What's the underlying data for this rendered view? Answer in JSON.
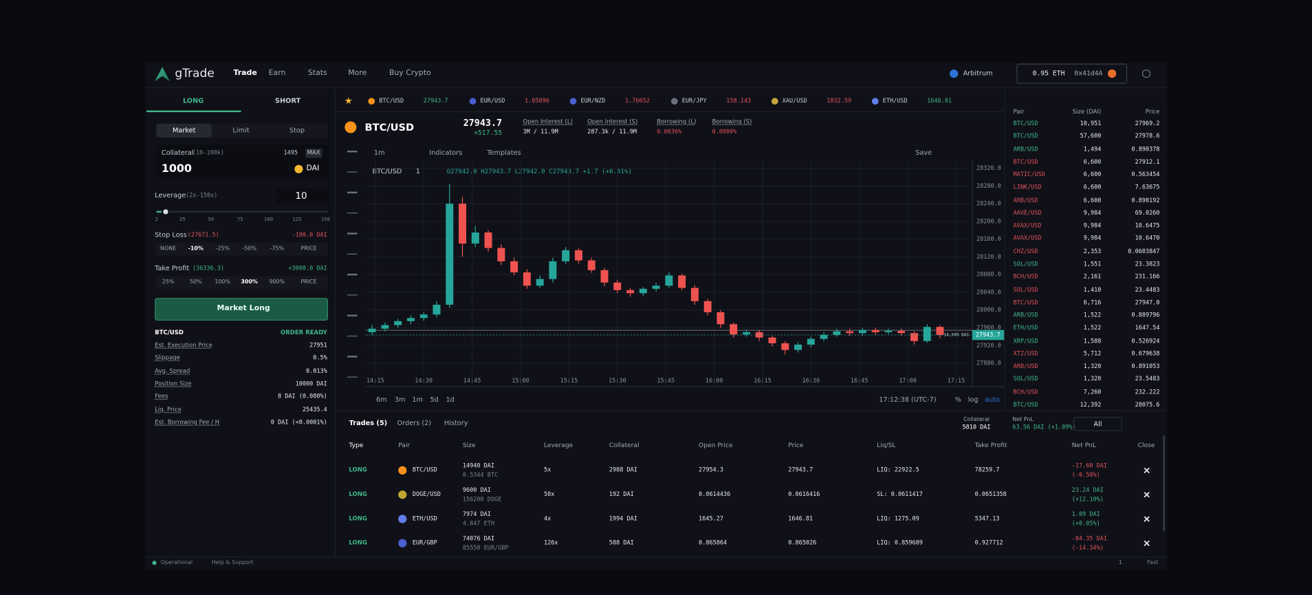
{
  "nav": {
    "brand": "gTrade",
    "links": [
      "Trade",
      "Earn",
      "Stats",
      "More",
      "Buy Crypto"
    ],
    "network": "Arbitrum",
    "balance": "0.95 ETH",
    "address": "0x41d4A"
  },
  "order_panel": {
    "sides": [
      "LONG",
      "SHORT"
    ],
    "order_types": [
      "Market",
      "Limit",
      "Stop"
    ],
    "collateral": {
      "label": "Collateral",
      "range": "(10-100k)",
      "balance": "1495",
      "max": "MAX",
      "amount": "1000",
      "currency": "DAI"
    },
    "leverage": {
      "label": "Leverage",
      "range": "(2x-150x)",
      "value": "10",
      "marks": [
        "2",
        "25",
        "50",
        "75",
        "100",
        "125",
        "150"
      ]
    },
    "stop_loss": {
      "label": "Stop Loss",
      "price": "(27671.5)",
      "pnl": "-100.0 DAI",
      "options": [
        "NONE",
        "-10%",
        "-25%",
        "-50%",
        "-75%",
        "PRICE"
      ]
    },
    "take_profit": {
      "label": "Take Profit",
      "price": "(36336.3)",
      "pnl": "+3000.0 DAI",
      "options": [
        "25%",
        "50%",
        "100%",
        "300%",
        "900%",
        "PRICE"
      ]
    },
    "button": "Market Long",
    "summary": {
      "pair": "BTC/USD",
      "status": "ORDER READY",
      "rows": [
        [
          "Est. Execution Price",
          "27951"
        ],
        [
          "Slippage",
          "0.5%"
        ],
        [
          "Avg. Spread",
          "0.013%"
        ],
        [
          "Position Size",
          "10000 DAI"
        ],
        [
          "Fees",
          "8 DAI (0.080%)"
        ],
        [
          "Liq. Price",
          "25435.4"
        ],
        [
          "Est. Borrowing Fee / H",
          "0 DAI (<0.0001%)"
        ]
      ]
    }
  },
  "ticker": [
    {
      "pair": "BTC/USD",
      "price": "27943.7",
      "color": "#3fb68b"
    },
    {
      "pair": "EUR/USD",
      "price": "1.05896",
      "color": "#e0525b"
    },
    {
      "pair": "EUR/NZD",
      "price": "1.76652",
      "color": "#e0525b"
    },
    {
      "pair": "EUR/JPY",
      "price": "158.143",
      "color": "#e0525b"
    },
    {
      "pair": "XAU/USD",
      "price": "1832.59",
      "color": "#e0525b"
    },
    {
      "pair": "ETH/USD",
      "price": "1646.81",
      "color": "#3fb68b"
    }
  ],
  "chart_header": {
    "pair": "BTC/USD",
    "price": "27943.7",
    "change": "+517.55",
    "stats": [
      [
        "Open Interest (L)",
        "3M / 11.9M"
      ],
      [
        "Open Interest (S)",
        "287.3k / 11.9M"
      ],
      [
        "Borrowing (L)",
        "0.0036%"
      ],
      [
        "Borrowing (S)",
        "0.0000%"
      ]
    ]
  },
  "chart_toolbar": {
    "interval": "1m",
    "indicators": "Indicators",
    "templates": "Templates",
    "save": "Save"
  },
  "chart_legend": {
    "symbol": "BTC/USD",
    "interval": "1",
    "ohlc": "O27942.0 H27943.7 L27942.0 C27943.7 +1.7 (+0.01%)"
  },
  "chart_data": {
    "type": "candlestick",
    "x": [
      "14:14",
      "14:18",
      "14:22",
      "14:26",
      "14:30",
      "14:34",
      "14:38",
      "14:42",
      "14:46",
      "14:50",
      "14:54",
      "14:58",
      "15:02",
      "15:06",
      "15:10",
      "15:14",
      "15:18",
      "15:22",
      "15:26",
      "15:30",
      "15:34",
      "15:38",
      "15:42",
      "15:46",
      "15:50",
      "15:54",
      "15:58",
      "16:02",
      "16:06",
      "16:10",
      "16:14",
      "16:18",
      "16:22",
      "16:26",
      "16:30",
      "16:34",
      "16:38",
      "16:42",
      "16:46",
      "16:50",
      "16:54",
      "16:58",
      "17:02",
      "17:06",
      "17:10"
    ],
    "open": [
      27950,
      27958,
      27966,
      27975,
      27982,
      27990,
      28012,
      28240,
      28150,
      28175,
      28140,
      28110,
      28085,
      28055,
      28070,
      28110,
      28135,
      28112,
      28090,
      28062,
      28045,
      28038,
      28048,
      28055,
      28078,
      28050,
      28020,
      27995,
      27968,
      27945,
      27950,
      27938,
      27925,
      27910,
      27922,
      27935,
      27944,
      27952,
      27948,
      27955,
      27950,
      27953,
      27948,
      27930,
      27962
    ],
    "high": [
      27966,
      27972,
      27980,
      27988,
      27995,
      28020,
      28285,
      28255,
      28190,
      28180,
      28148,
      28118,
      28092,
      28078,
      28118,
      28142,
      28140,
      28118,
      28095,
      28068,
      28050,
      28052,
      28062,
      28085,
      28082,
      28056,
      28025,
      28000,
      27972,
      27956,
      27955,
      27942,
      27930,
      27928,
      27940,
      27950,
      27958,
      27958,
      27960,
      27960,
      27958,
      27958,
      27952,
      27968,
      27966
    ],
    "low": [
      27944,
      27952,
      27960,
      27968,
      27976,
      27984,
      28005,
      28120,
      28142,
      28132,
      28102,
      28078,
      28048,
      28050,
      28062,
      28104,
      28105,
      28084,
      28054,
      28038,
      28030,
      28032,
      28042,
      28050,
      28044,
      28012,
      27988,
      27960,
      27938,
      27940,
      27930,
      27918,
      27900,
      27904,
      27916,
      27930,
      27940,
      27942,
      27942,
      27944,
      27946,
      27942,
      27922,
      27926,
      27936
    ],
    "close": [
      27958,
      27966,
      27975,
      27982,
      27990,
      28012,
      28240,
      28150,
      28175,
      28140,
      28110,
      28085,
      28055,
      28070,
      28110,
      28135,
      28112,
      28090,
      28062,
      28045,
      28038,
      28048,
      28055,
      28078,
      28050,
      28020,
      27995,
      27968,
      27945,
      27950,
      27938,
      27925,
      27910,
      27922,
      27935,
      27944,
      27952,
      27948,
      27955,
      27950,
      27953,
      27948,
      27930,
      27962,
      27943.7
    ],
    "xlim": [
      "14:12",
      "17:20"
    ],
    "xticks": [
      "14:15",
      "14:30",
      "14:45",
      "15:00",
      "15:15",
      "15:30",
      "15:45",
      "16:00",
      "16:15",
      "16:30",
      "16:45",
      "17:00",
      "17:15"
    ],
    "ylim": [
      27827,
      28337
    ],
    "yticks": [
      {
        "value": 28320,
        "label": "28320.0"
      },
      {
        "value": 28280,
        "label": "28280.0"
      },
      {
        "value": 28240,
        "label": "28240.0"
      },
      {
        "value": 28200,
        "label": "28200.0"
      },
      {
        "value": 28160,
        "label": "28160.0"
      },
      {
        "value": 28120,
        "label": "28120.0"
      },
      {
        "value": 28080,
        "label": "28080.0"
      },
      {
        "value": 28040,
        "label": "28040.0"
      },
      {
        "value": 28000,
        "label": "28000.0"
      },
      {
        "value": 27960,
        "label": "27960.0"
      },
      {
        "value": 27920,
        "label": "27920.0"
      },
      {
        "value": 27880,
        "label": "27880.0"
      }
    ],
    "up_color": "#26a69a",
    "down_color": "#ef5350",
    "grid": true,
    "last_price": 27943.7,
    "position": {
      "value": 27954.3,
      "label": "14,940 DAI"
    }
  },
  "chart_footer": {
    "ranges": [
      "6m",
      "3m",
      "1m",
      "5d",
      "1d"
    ],
    "time": "17:12:38 (UTC-7)",
    "options": [
      "%",
      "log",
      "auto"
    ]
  },
  "order_book": {
    "headers": [
      "Pair",
      "Size (DAI)",
      "Price"
    ],
    "rows": [
      {
        "pair": "BTC/USD",
        "size": "10,951",
        "price": "27969.2",
        "color": "#3fb68b"
      },
      {
        "pair": "BTC/USD",
        "size": "57,600",
        "price": "27978.6",
        "color": "#3fb68b"
      },
      {
        "pair": "ARB/USD",
        "size": "1,494",
        "price": "0.890378",
        "color": "#3fb68b"
      },
      {
        "pair": "BTC/USD",
        "size": "6,600",
        "price": "27912.1",
        "color": "#e0525b"
      },
      {
        "pair": "MATIC/USD",
        "size": "6,600",
        "price": "0.563454",
        "color": "#e0525b"
      },
      {
        "pair": "LINK/USD",
        "size": "6,600",
        "price": "7.63675",
        "color": "#e0525b"
      },
      {
        "pair": "ARB/USD",
        "size": "6,600",
        "price": "0.890192",
        "color": "#e0525b"
      },
      {
        "pair": "AAVE/USD",
        "size": "9,984",
        "price": "69.0260",
        "color": "#e0525b"
      },
      {
        "pair": "AVAX/USD",
        "size": "9,984",
        "price": "10.6475",
        "color": "#e0525b"
      },
      {
        "pair": "AVAX/USD",
        "size": "9,984",
        "price": "10.6470",
        "color": "#e0525b"
      },
      {
        "pair": "CHZ/USD",
        "size": "2,353",
        "price": "0.0603847",
        "color": "#e0525b"
      },
      {
        "pair": "SOL/USD",
        "size": "1,551",
        "price": "23.3823",
        "color": "#3fb68b"
      },
      {
        "pair": "BCH/USD",
        "size": "2,161",
        "price": "231.166",
        "color": "#e0525b"
      },
      {
        "pair": "SOL/USD",
        "size": "1,410",
        "price": "23.4483",
        "color": "#e0525b"
      },
      {
        "pair": "BTC/USD",
        "size": "6,716",
        "price": "27947.0",
        "color": "#e0525b"
      },
      {
        "pair": "ARB/USD",
        "size": "1,522",
        "price": "0.889796",
        "color": "#3fb68b"
      },
      {
        "pair": "ETH/USD",
        "size": "1,522",
        "price": "1647.54",
        "color": "#3fb68b"
      },
      {
        "pair": "XRP/USD",
        "size": "1,588",
        "price": "0.526924",
        "color": "#3fb68b"
      },
      {
        "pair": "XTZ/USD",
        "size": "5,712",
        "price": "0.679638",
        "color": "#e0525b"
      },
      {
        "pair": "ARB/USD",
        "size": "1,320",
        "price": "0.891053",
        "color": "#e0525b"
      },
      {
        "pair": "SOL/USD",
        "size": "1,320",
        "price": "23.5483",
        "color": "#3fb68b"
      },
      {
        "pair": "BCH/USD",
        "size": "7,260",
        "price": "232.222",
        "color": "#e0525b"
      },
      {
        "pair": "BTC/USD",
        "size": "12,392",
        "price": "28075.6",
        "color": "#3fb68b"
      }
    ]
  },
  "trades": {
    "tabs": [
      "Trades (5)",
      "Orders (2)",
      "History"
    ],
    "collateral_label": "Collateral",
    "collateral": "5810 DAI",
    "pnl_label": "Net PnL",
    "pnl": "63.56 DAI (+1.09%)",
    "filter": "All",
    "headers": [
      "Type",
      "Pair",
      "Size",
      "Leverage",
      "Collateral",
      "Open Price",
      "Price",
      "Liq/SL",
      "Take Profit",
      "Net PnL",
      "Close"
    ],
    "rows": [
      {
        "type": "LONG",
        "pair": "BTC/USD",
        "size": "14940 DAI",
        "size_units": "0.5344 BTC",
        "leverage": "5x",
        "collateral": "2988 DAI",
        "open_price": "27954.3",
        "price": "27943.7",
        "liq_sl": "LIQ: 22922.5",
        "take_profit": "78259.7",
        "pnl": "-17.60 DAI",
        "pnl_pct": "(-0.58%)",
        "pnl_color": "#e0525b"
      },
      {
        "type": "LONG",
        "pair": "DOGE/USD",
        "size": "9600 DAI",
        "size_units": "156200 DOGE",
        "leverage": "50x",
        "collateral": "192 DAI",
        "open_price": "0.0614436",
        "price": "0.0616416",
        "liq_sl": "SL: 0.0611417",
        "take_profit": "0.0651358",
        "pnl": "23.24 DAI",
        "pnl_pct": "(+12.10%)",
        "pnl_color": "#3fb68b"
      },
      {
        "type": "LONG",
        "pair": "ETH/USD",
        "size": "7974 DAI",
        "size_units": "4.847 ETH",
        "leverage": "4x",
        "collateral": "1994 DAI",
        "open_price": "1645.27",
        "price": "1646.81",
        "liq_sl": "LIQ: 1275.09",
        "take_profit": "5347.13",
        "pnl": "1.09 DAI",
        "pnl_pct": "(+0.05%)",
        "pnl_color": "#3fb68b"
      },
      {
        "type": "LONG",
        "pair": "EUR/GBP",
        "size": "74076 DAI",
        "size_units": "85550 EUR/GBP",
        "leverage": "126x",
        "collateral": "588 DAI",
        "open_price": "0.865864",
        "price": "0.865026",
        "liq_sl": "LIQ: 0.859689",
        "take_profit": "0.927712",
        "pnl": "-84.35 DAI",
        "pnl_pct": "(-14.34%)",
        "pnl_color": "#e0525b"
      }
    ]
  },
  "footer": {
    "status": "Operational",
    "help": "Help & Support",
    "page": "1",
    "speed": "Fast"
  }
}
